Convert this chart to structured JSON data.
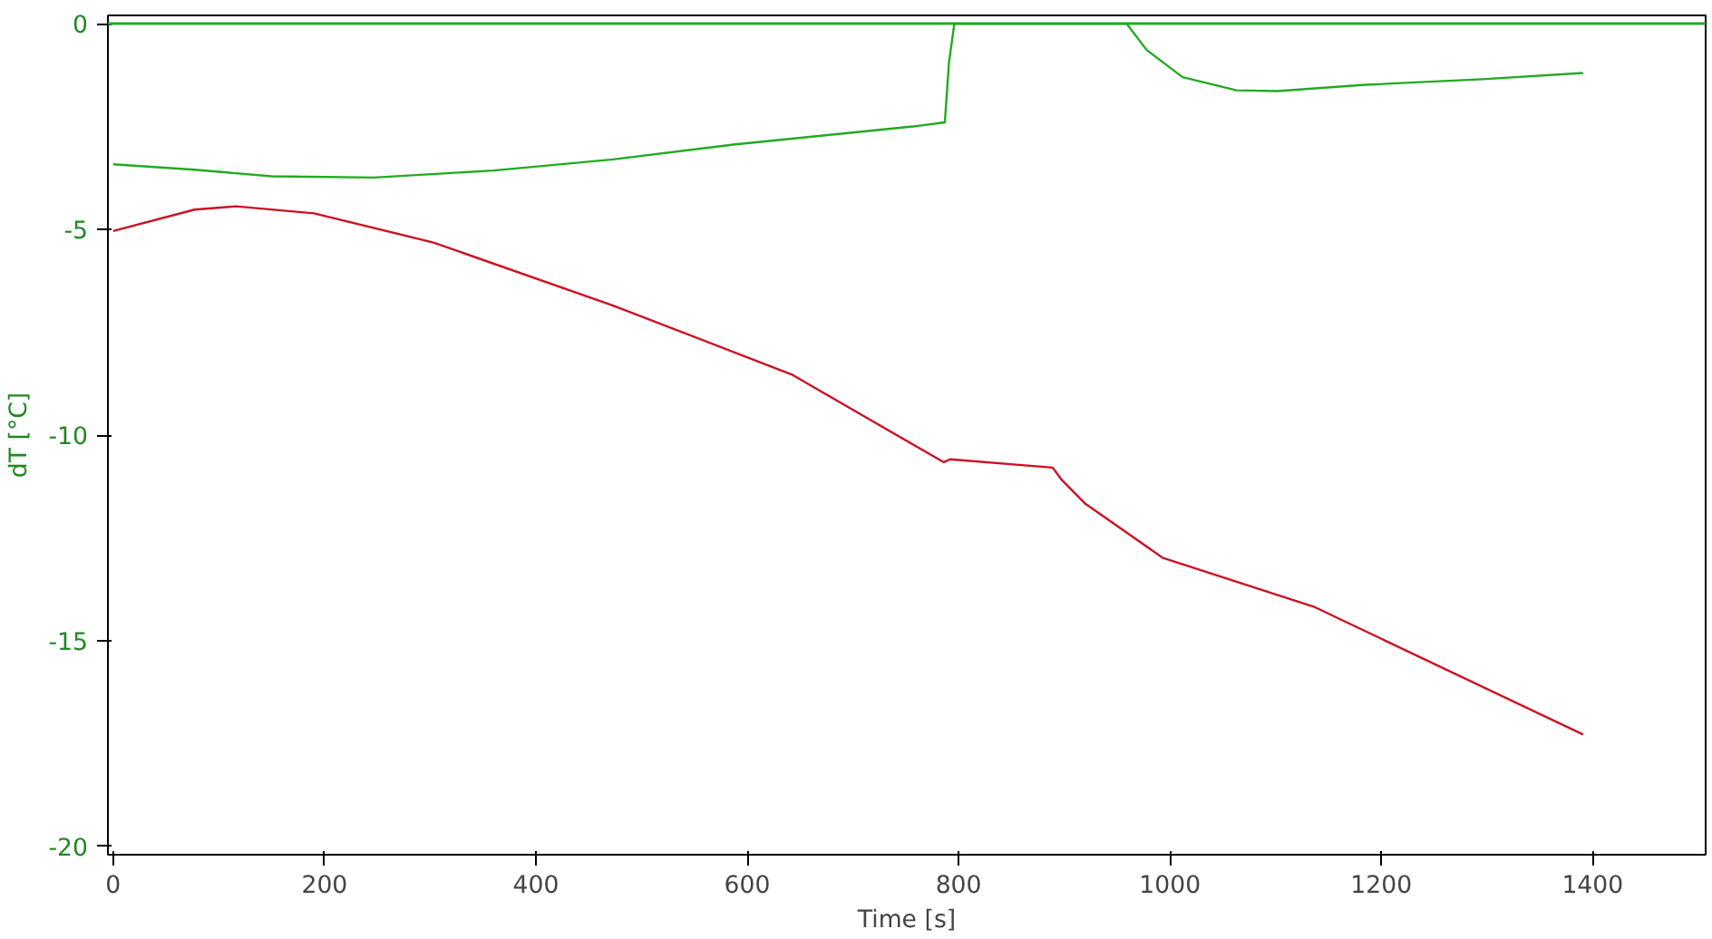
{
  "chart_data": {
    "type": "line",
    "xlabel": "Time [s]",
    "ylabel": "dT [°C]",
    "xlim": [
      -5,
      1507
    ],
    "ylim": [
      -20.2,
      0.2
    ],
    "xticks": [
      0,
      200,
      400,
      600,
      800,
      1000,
      1200,
      1400
    ],
    "yticks": [
      0,
      -5,
      -10,
      -15,
      -20
    ],
    "grid": false,
    "marker": "none",
    "line_style": "solid",
    "ref_lines": [
      {
        "axis": "y",
        "value": 0,
        "color": "#22aa22"
      }
    ],
    "series": [
      {
        "color": "#22aa22",
        "x": [
          0,
          77,
          150,
          247,
          360,
          473,
          587,
          672,
          757,
          787,
          791,
          796,
          959,
          978,
          1012,
          1063,
          1102,
          1182,
          1296,
          1391
        ],
        "values": [
          -3.42,
          -3.55,
          -3.71,
          -3.74,
          -3.57,
          -3.3,
          -2.94,
          -2.72,
          -2.5,
          -2.4,
          -0.93,
          0,
          0,
          -0.64,
          -1.3,
          -1.62,
          -1.64,
          -1.49,
          -1.35,
          -1.2
        ]
      },
      {
        "color": "#cc1122",
        "x": [
          0,
          77,
          116,
          190,
          303,
          473,
          643,
          786,
          792,
          889,
          898,
          920,
          993,
          1136,
          1391
        ],
        "values": [
          -5.04,
          -4.52,
          -4.44,
          -4.61,
          -5.32,
          -6.85,
          -8.54,
          -10.66,
          -10.59,
          -10.79,
          -11.1,
          -11.67,
          -12.98,
          -14.17,
          -17.28
        ]
      }
    ]
  }
}
